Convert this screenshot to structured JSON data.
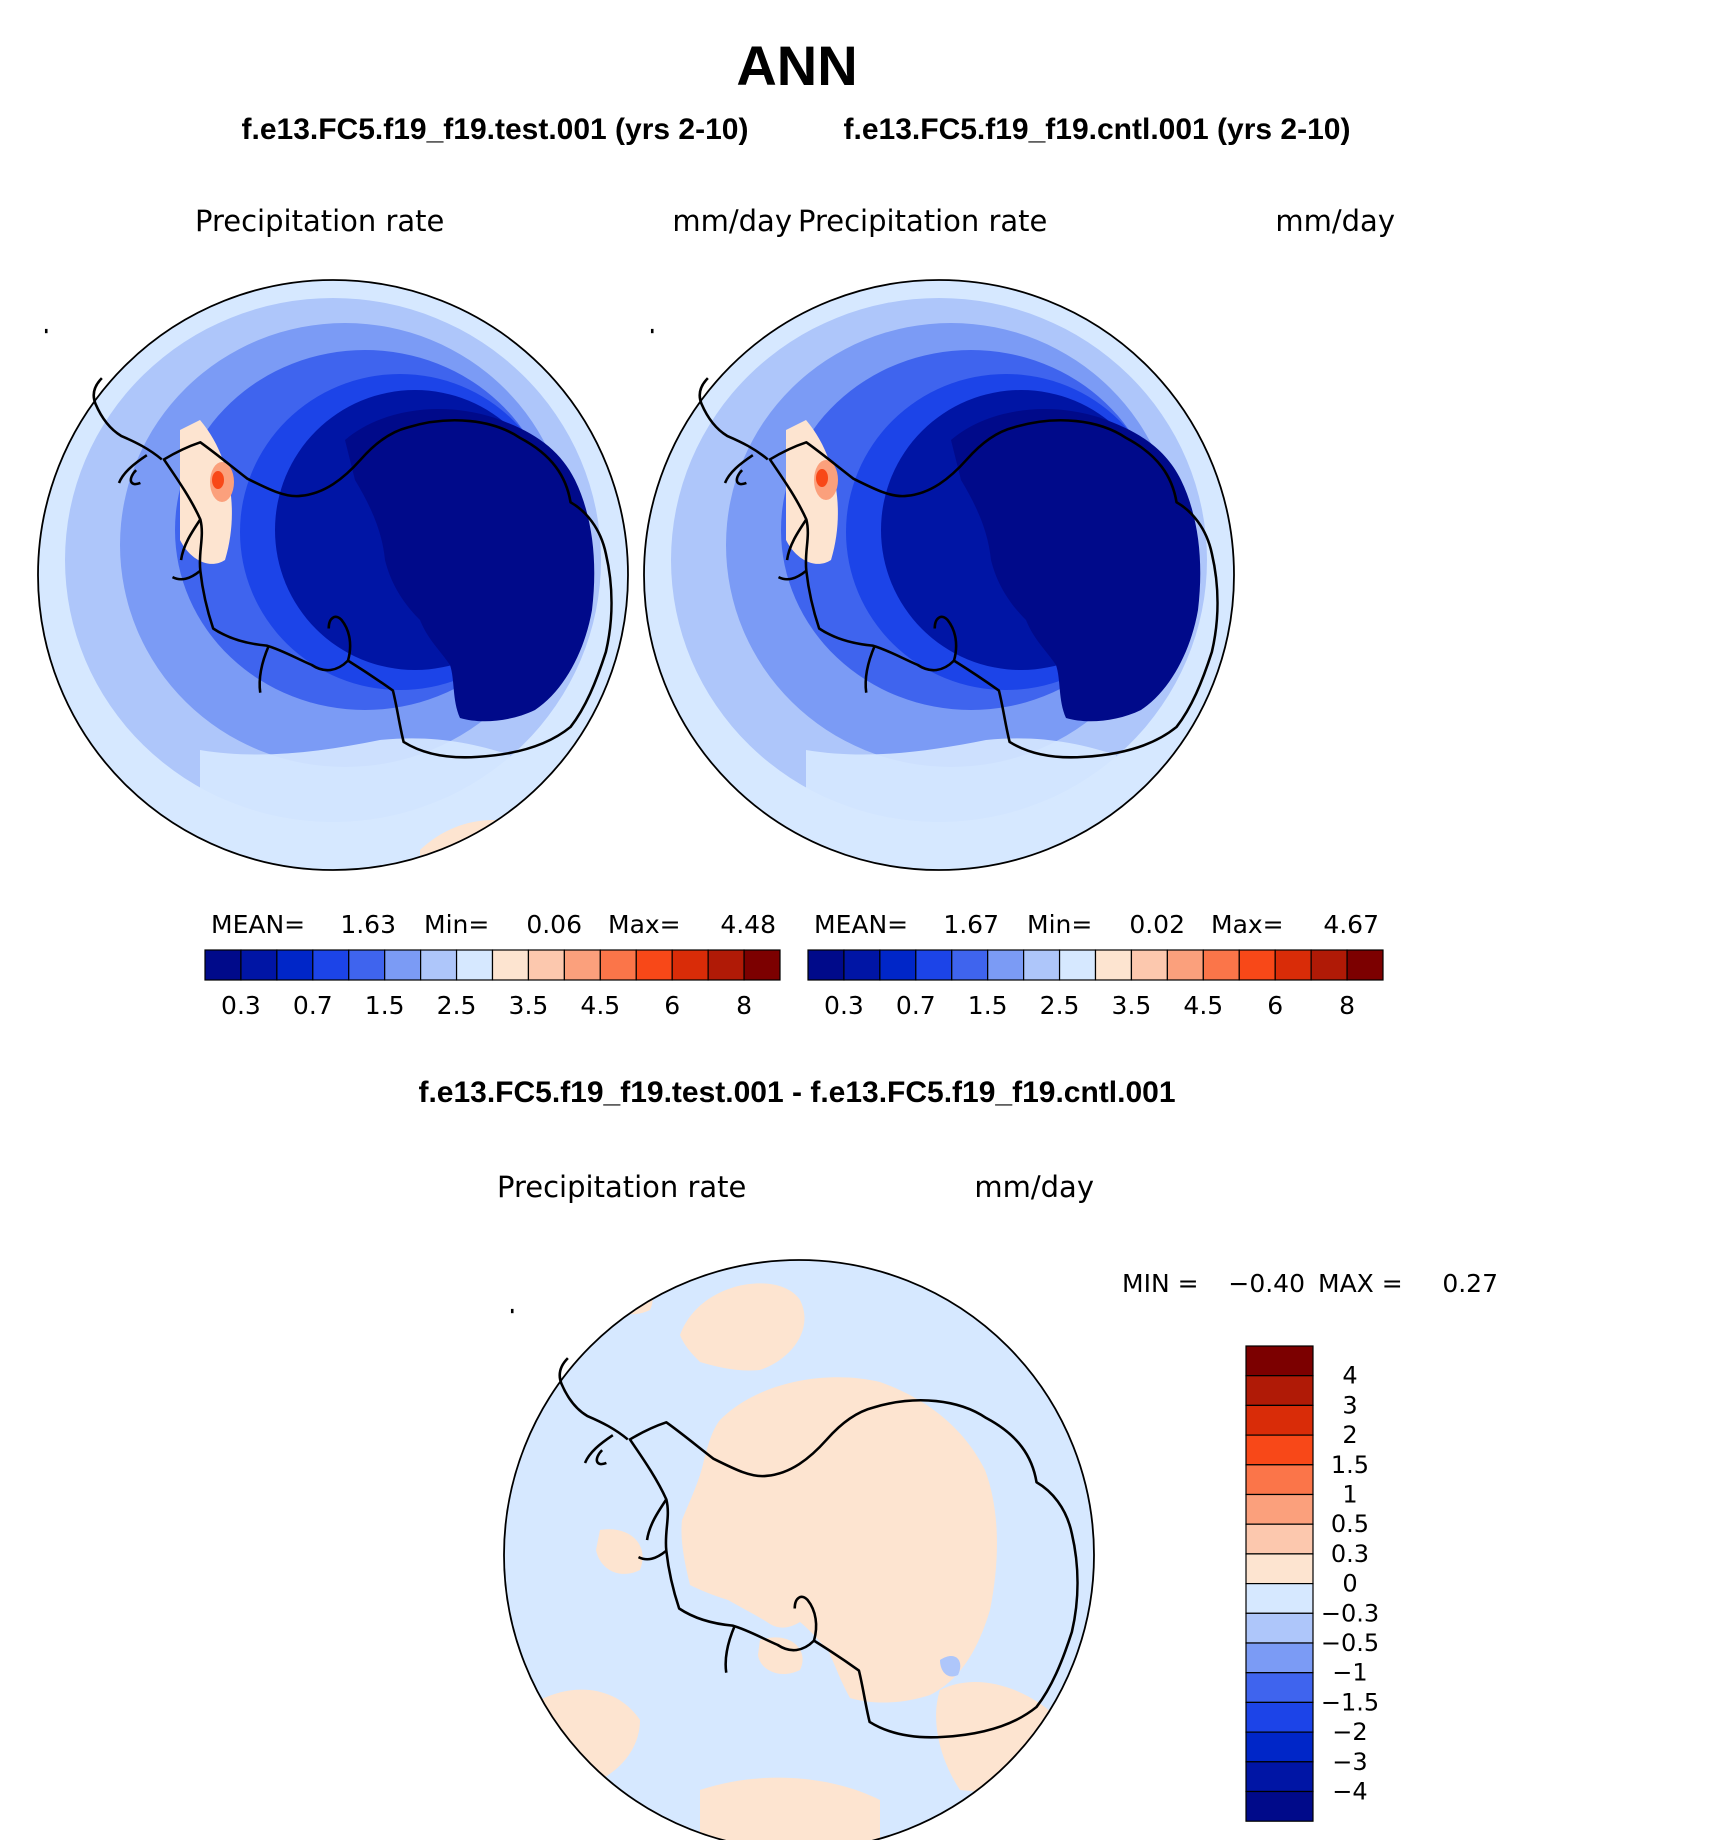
{
  "title": "ANN",
  "panels": [
    {
      "case": "f.e13.FC5.f19_f19.test.001 (yrs 2-10)",
      "variable": "Precipitation  rate",
      "units": "mm/day",
      "stats": {
        "mean_label": "MEAN=",
        "mean": "1.63",
        "min_label": "Min=",
        "min": "0.06",
        "max_label": "Max=",
        "max": "4.48"
      }
    },
    {
      "case": "f.e13.FC5.f19_f19.cntl.001 (yrs 2-10)",
      "variable": "Precipitation  rate",
      "units": "mm/day",
      "stats": {
        "mean_label": "MEAN=",
        "mean": "1.67",
        "min_label": "Min=",
        "min": "0.02",
        "max_label": "Max=",
        "max": "4.67"
      }
    }
  ],
  "diff": {
    "title": "f.e13.FC5.f19_f19.test.001 - f.e13.FC5.f19_f19.cntl.001",
    "variable": "Precipitation  rate",
    "units": "mm/day",
    "min_label": "MIN =",
    "min": "−0.40",
    "max_label": "MAX =",
    "max": "0.27"
  },
  "field_colorbar": {
    "colors": [
      "#000a8a",
      "#0015a5",
      "#0026c8",
      "#1c44e8",
      "#3f64ee",
      "#7b9bf5",
      "#aec6fa",
      "#d6e8ff",
      "#fde4d0",
      "#fcc8ae",
      "#fba07c",
      "#fb7549",
      "#f84818",
      "#d92c08",
      "#b01a06",
      "#7c0000"
    ],
    "tick_labels": [
      "0.3",
      "0.7",
      "1.5",
      "2.5",
      "3.5",
      "4.5",
      "6",
      "8"
    ],
    "tick_after_index": [
      0,
      2,
      4,
      6,
      8,
      10,
      12,
      14
    ]
  },
  "diff_colorbar": {
    "colors": [
      "#7c0000",
      "#b01a06",
      "#d92c08",
      "#f84818",
      "#fb7549",
      "#fba07c",
      "#fcc8ae",
      "#fde4d0",
      "#d6e8ff",
      "#aec6fa",
      "#7b9bf5",
      "#3f64ee",
      "#1c44e8",
      "#0026c8",
      "#0015a5",
      "#000a8a"
    ],
    "tick_labels": [
      "4",
      "3",
      "2",
      "1.5",
      "1",
      "0.5",
      "0.3",
      "0",
      "−0.3",
      "−0.5",
      "−1",
      "−1.5",
      "−2",
      "−3",
      "−4"
    ]
  }
}
